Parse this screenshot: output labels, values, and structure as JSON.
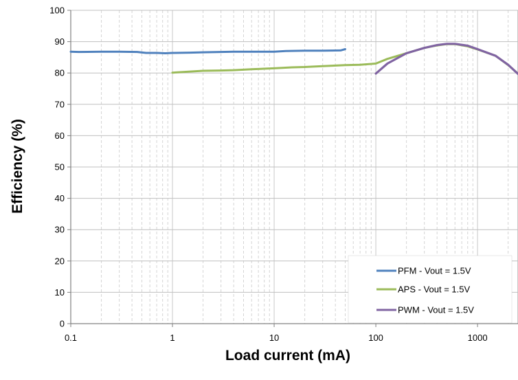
{
  "chart_data": {
    "type": "line",
    "xscale": "log",
    "xlabel": "Load current (mA)",
    "ylabel": "Efficiency (%)",
    "xlim": [
      0.1,
      2500
    ],
    "ylim": [
      0,
      100
    ],
    "xticks": [
      {
        "value": 0.1,
        "label": "0.1"
      },
      {
        "value": 1,
        "label": "1"
      },
      {
        "value": 10,
        "label": "10"
      },
      {
        "value": 100,
        "label": "100"
      },
      {
        "value": 1000,
        "label": "1000"
      }
    ],
    "yticks": [
      {
        "value": 0,
        "label": "0"
      },
      {
        "value": 10,
        "label": "10"
      },
      {
        "value": 20,
        "label": "20"
      },
      {
        "value": 30,
        "label": "30"
      },
      {
        "value": 40,
        "label": "40"
      },
      {
        "value": 50,
        "label": "50"
      },
      {
        "value": 60,
        "label": "60"
      },
      {
        "value": 70,
        "label": "70"
      },
      {
        "value": 80,
        "label": "80"
      },
      {
        "value": 90,
        "label": "90"
      },
      {
        "value": 100,
        "label": "100"
      }
    ],
    "grid": "major-horizontal-solid, minor-vertical-dashed",
    "legend_position": "bottom-right",
    "series": [
      {
        "name": "PFM - Vout = 1.5V",
        "color": "#4f81bd",
        "x": [
          0.1,
          0.12,
          0.2,
          0.3,
          0.45,
          0.55,
          0.7,
          0.85,
          1,
          1.5,
          2,
          3,
          4,
          6,
          8,
          10,
          13,
          20,
          30,
          45,
          50
        ],
        "y": [
          86.8,
          86.7,
          86.8,
          86.8,
          86.7,
          86.4,
          86.4,
          86.3,
          86.4,
          86.5,
          86.6,
          86.7,
          86.8,
          86.8,
          86.8,
          86.8,
          87.0,
          87.1,
          87.1,
          87.2,
          87.6
        ]
      },
      {
        "name": "APS - Vout = 1.5V",
        "color": "#9bbb59",
        "x": [
          1,
          2,
          3,
          4,
          6,
          10,
          15,
          20,
          30,
          50,
          70,
          100,
          130,
          200,
          300,
          400,
          500,
          600,
          800,
          1000,
          1500,
          2000,
          2500
        ],
        "y": [
          80.1,
          80.7,
          80.8,
          80.9,
          81.2,
          81.5,
          81.8,
          81.9,
          82.2,
          82.5,
          82.6,
          83.0,
          84.5,
          86.3,
          88.0,
          88.8,
          89.2,
          89.2,
          88.5,
          87.5,
          85.5,
          82.5,
          79.8
        ]
      },
      {
        "name": "PWM - Vout = 1.5V",
        "color": "#8064a2",
        "x": [
          100,
          130,
          200,
          300,
          400,
          500,
          600,
          800,
          1000,
          1500,
          2000,
          2500
        ],
        "y": [
          79.8,
          83.0,
          86.3,
          88.0,
          88.9,
          89.3,
          89.3,
          88.7,
          87.6,
          85.5,
          82.6,
          79.7
        ]
      }
    ]
  }
}
